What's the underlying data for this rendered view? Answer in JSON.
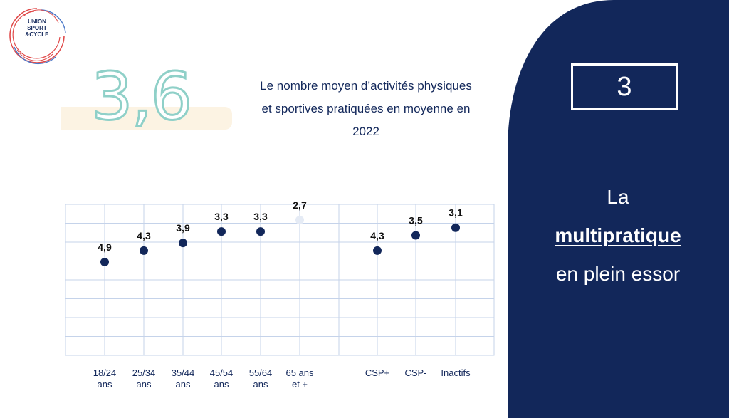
{
  "logo": {
    "line1": "UNION",
    "line2": "SPORT",
    "line3": "&CYCLE"
  },
  "stat": {
    "value": "3,6",
    "description_line1": "Le nombre moyen d’activités physiques",
    "description_line2": "et sportives pratiquées en moyenne en",
    "description_line3": "2022"
  },
  "side_panel": {
    "number": "3",
    "line1": "La",
    "line2": "multipratique",
    "line3": "en plein essor",
    "background_color": "#12275a"
  },
  "chart_data": {
    "type": "scatter",
    "title": "",
    "xlabel": "",
    "ylabel": "",
    "grid": true,
    "categories": [
      [
        "18/24",
        "ans"
      ],
      [
        "25/34",
        "ans"
      ],
      [
        "35/44",
        "ans"
      ],
      [
        "45/54",
        "ans"
      ],
      [
        "55/64",
        "ans"
      ],
      [
        "65 ans",
        "et +"
      ],
      [
        "CSP+"
      ],
      [
        "CSP-"
      ],
      [
        "Inactifs"
      ]
    ],
    "values": [
      4.9,
      4.3,
      3.9,
      3.3,
      3.3,
      2.7,
      4.3,
      3.5,
      3.1
    ],
    "value_labels": [
      "4,9",
      "4,3",
      "3,9",
      "3,3",
      "3,3",
      "2,7",
      "4,3",
      "3,5",
      "3,1"
    ],
    "point_colors": [
      "#12275a",
      "#12275a",
      "#12275a",
      "#12275a",
      "#12275a",
      "#e5ebf5",
      "#12275a",
      "#12275a",
      "#12275a"
    ],
    "grid_color": "#c5d3ea"
  }
}
